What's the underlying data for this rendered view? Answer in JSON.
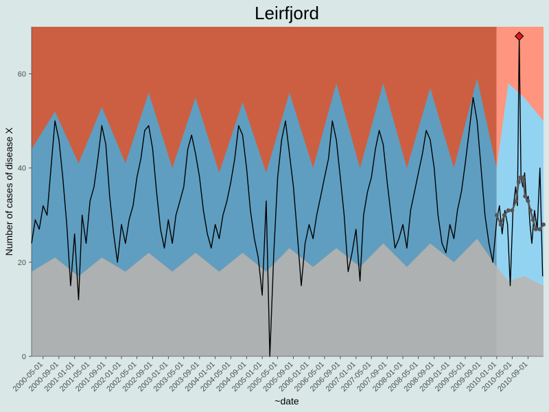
{
  "chart_data": {
    "type": "area",
    "title": "Leirfjord",
    "xlabel": "~date",
    "ylabel": "Number of cases of disease X",
    "ylim": [
      0,
      70
    ],
    "xlim": [
      "2000-02-01",
      "2010-12-31"
    ],
    "y_ticks": [
      0,
      20,
      40,
      60
    ],
    "x_ticks": [
      "2000-05-01",
      "2000-09-01",
      "2001-01-01",
      "2001-05-01",
      "2001-09-01",
      "2002-01-01",
      "2002-05-01",
      "2002-09-01",
      "2003-01-01",
      "2003-05-01",
      "2003-09-01",
      "2004-01-01",
      "2004-05-01",
      "2004-09-01",
      "2005-01-01",
      "2005-05-01",
      "2005-09-01",
      "2006-01-01",
      "2006-05-01",
      "2006-09-01",
      "2007-01-01",
      "2007-05-01",
      "2007-09-01",
      "2008-01-01",
      "2008-05-01",
      "2008-09-01",
      "2009-01-01",
      "2009-05-01",
      "2009-09-01",
      "2010-01-01",
      "2010-05-01",
      "2010-09-01"
    ],
    "baseline_end": "2009-12-31",
    "grid": false,
    "legend": "none",
    "bands": {
      "lower_threshold": [
        {
          "x": "2000-02-01",
          "y": 18
        },
        {
          "x": "2000-08-01",
          "y": 21
        },
        {
          "x": "2001-02-01",
          "y": 17
        },
        {
          "x": "2001-08-01",
          "y": 21
        },
        {
          "x": "2002-02-01",
          "y": 18
        },
        {
          "x": "2002-08-01",
          "y": 22
        },
        {
          "x": "2003-02-01",
          "y": 18
        },
        {
          "x": "2003-08-01",
          "y": 22
        },
        {
          "x": "2004-02-01",
          "y": 18
        },
        {
          "x": "2004-08-01",
          "y": 22
        },
        {
          "x": "2005-02-01",
          "y": 18
        },
        {
          "x": "2005-08-01",
          "y": 23
        },
        {
          "x": "2006-02-01",
          "y": 19
        },
        {
          "x": "2006-08-01",
          "y": 23
        },
        {
          "x": "2007-02-01",
          "y": 19
        },
        {
          "x": "2007-08-01",
          "y": 24
        },
        {
          "x": "2008-02-01",
          "y": 19
        },
        {
          "x": "2008-08-01",
          "y": 24
        },
        {
          "x": "2009-02-01",
          "y": 20
        },
        {
          "x": "2009-08-01",
          "y": 25
        },
        {
          "x": "2009-12-31",
          "y": 19
        },
        {
          "x": "2010-04-01",
          "y": 16
        },
        {
          "x": "2010-08-01",
          "y": 17
        },
        {
          "x": "2010-12-31",
          "y": 15
        }
      ],
      "upper_threshold": [
        {
          "x": "2000-02-01",
          "y": 44
        },
        {
          "x": "2000-08-01",
          "y": 52
        },
        {
          "x": "2001-02-01",
          "y": 41
        },
        {
          "x": "2001-08-01",
          "y": 53
        },
        {
          "x": "2002-02-01",
          "y": 41
        },
        {
          "x": "2002-08-01",
          "y": 56
        },
        {
          "x": "2003-02-01",
          "y": 40
        },
        {
          "x": "2003-08-01",
          "y": 55
        },
        {
          "x": "2004-02-01",
          "y": 39
        },
        {
          "x": "2004-08-01",
          "y": 54
        },
        {
          "x": "2005-02-01",
          "y": 39
        },
        {
          "x": "2005-08-01",
          "y": 56
        },
        {
          "x": "2006-02-01",
          "y": 40
        },
        {
          "x": "2006-08-01",
          "y": 58
        },
        {
          "x": "2007-02-01",
          "y": 40
        },
        {
          "x": "2007-08-01",
          "y": 58
        },
        {
          "x": "2008-02-01",
          "y": 40
        },
        {
          "x": "2008-08-01",
          "y": 57
        },
        {
          "x": "2009-02-01",
          "y": 40
        },
        {
          "x": "2009-08-01",
          "y": 59
        },
        {
          "x": "2009-12-31",
          "y": 40
        },
        {
          "x": "2010-04-01",
          "y": 58
        },
        {
          "x": "2010-08-01",
          "y": 55
        },
        {
          "x": "2010-12-31",
          "y": 50
        }
      ]
    },
    "series": [
      {
        "values": [
          {
            "x": "2000-02-01",
            "y": 24
          },
          {
            "x": "2000-03-01",
            "y": 29
          },
          {
            "x": "2000-04-01",
            "y": 27
          },
          {
            "x": "2000-05-01",
            "y": 32
          },
          {
            "x": "2000-06-01",
            "y": 30
          },
          {
            "x": "2000-07-01",
            "y": 40
          },
          {
            "x": "2000-08-01",
            "y": 50
          },
          {
            "x": "2000-09-01",
            "y": 46
          },
          {
            "x": "2000-10-01",
            "y": 38
          },
          {
            "x": "2000-11-01",
            "y": 28
          },
          {
            "x": "2000-12-01",
            "y": 15
          },
          {
            "x": "2001-01-01",
            "y": 26
          },
          {
            "x": "2001-02-01",
            "y": 12
          },
          {
            "x": "2001-03-01",
            "y": 30
          },
          {
            "x": "2001-04-01",
            "y": 24
          },
          {
            "x": "2001-05-01",
            "y": 33
          },
          {
            "x": "2001-06-01",
            "y": 36
          },
          {
            "x": "2001-07-01",
            "y": 42
          },
          {
            "x": "2001-08-01",
            "y": 49
          },
          {
            "x": "2001-09-01",
            "y": 45
          },
          {
            "x": "2001-10-01",
            "y": 34
          },
          {
            "x": "2001-11-01",
            "y": 26
          },
          {
            "x": "2001-12-01",
            "y": 20
          },
          {
            "x": "2002-01-01",
            "y": 28
          },
          {
            "x": "2002-02-01",
            "y": 24
          },
          {
            "x": "2002-03-01",
            "y": 29
          },
          {
            "x": "2002-04-01",
            "y": 32
          },
          {
            "x": "2002-05-01",
            "y": 38
          },
          {
            "x": "2002-06-01",
            "y": 42
          },
          {
            "x": "2002-07-01",
            "y": 48
          },
          {
            "x": "2002-08-01",
            "y": 49
          },
          {
            "x": "2002-09-01",
            "y": 44
          },
          {
            "x": "2002-10-01",
            "y": 35
          },
          {
            "x": "2002-11-01",
            "y": 27
          },
          {
            "x": "2002-12-01",
            "y": 23
          },
          {
            "x": "2003-01-01",
            "y": 29
          },
          {
            "x": "2003-02-01",
            "y": 24
          },
          {
            "x": "2003-03-01",
            "y": 30
          },
          {
            "x": "2003-04-01",
            "y": 33
          },
          {
            "x": "2003-05-01",
            "y": 36
          },
          {
            "x": "2003-06-01",
            "y": 44
          },
          {
            "x": "2003-07-01",
            "y": 47
          },
          {
            "x": "2003-08-01",
            "y": 43
          },
          {
            "x": "2003-09-01",
            "y": 38
          },
          {
            "x": "2003-10-01",
            "y": 31
          },
          {
            "x": "2003-11-01",
            "y": 26
          },
          {
            "x": "2003-12-01",
            "y": 23
          },
          {
            "x": "2004-01-01",
            "y": 28
          },
          {
            "x": "2004-02-01",
            "y": 25
          },
          {
            "x": "2004-03-01",
            "y": 30
          },
          {
            "x": "2004-04-01",
            "y": 33
          },
          {
            "x": "2004-05-01",
            "y": 37
          },
          {
            "x": "2004-06-01",
            "y": 42
          },
          {
            "x": "2004-07-01",
            "y": 49
          },
          {
            "x": "2004-08-01",
            "y": 47
          },
          {
            "x": "2004-09-01",
            "y": 40
          },
          {
            "x": "2004-10-01",
            "y": 31
          },
          {
            "x": "2004-11-01",
            "y": 25
          },
          {
            "x": "2004-12-01",
            "y": 21
          },
          {
            "x": "2005-01-01",
            "y": 13
          },
          {
            "x": "2005-02-01",
            "y": 33
          },
          {
            "x": "2005-03-01",
            "y": 0
          },
          {
            "x": "2005-04-01",
            "y": 22
          },
          {
            "x": "2005-05-01",
            "y": 38
          },
          {
            "x": "2005-06-01",
            "y": 46
          },
          {
            "x": "2005-07-01",
            "y": 50
          },
          {
            "x": "2005-08-01",
            "y": 43
          },
          {
            "x": "2005-09-01",
            "y": 36
          },
          {
            "x": "2005-10-01",
            "y": 26
          },
          {
            "x": "2005-11-01",
            "y": 15
          },
          {
            "x": "2005-12-01",
            "y": 24
          },
          {
            "x": "2006-01-01",
            "y": 28
          },
          {
            "x": "2006-02-01",
            "y": 25
          },
          {
            "x": "2006-03-01",
            "y": 30
          },
          {
            "x": "2006-04-01",
            "y": 34
          },
          {
            "x": "2006-05-01",
            "y": 38
          },
          {
            "x": "2006-06-01",
            "y": 42
          },
          {
            "x": "2006-07-01",
            "y": 50
          },
          {
            "x": "2006-08-01",
            "y": 46
          },
          {
            "x": "2006-09-01",
            "y": 38
          },
          {
            "x": "2006-10-01",
            "y": 30
          },
          {
            "x": "2006-11-01",
            "y": 18
          },
          {
            "x": "2006-12-01",
            "y": 22
          },
          {
            "x": "2007-01-01",
            "y": 27
          },
          {
            "x": "2007-02-01",
            "y": 16
          },
          {
            "x": "2007-03-01",
            "y": 30
          },
          {
            "x": "2007-04-01",
            "y": 35
          },
          {
            "x": "2007-05-01",
            "y": 38
          },
          {
            "x": "2007-06-01",
            "y": 44
          },
          {
            "x": "2007-07-01",
            "y": 48
          },
          {
            "x": "2007-08-01",
            "y": 45
          },
          {
            "x": "2007-09-01",
            "y": 37
          },
          {
            "x": "2007-10-01",
            "y": 30
          },
          {
            "x": "2007-11-01",
            "y": 23
          },
          {
            "x": "2007-12-01",
            "y": 25
          },
          {
            "x": "2008-01-01",
            "y": 28
          },
          {
            "x": "2008-02-01",
            "y": 23
          },
          {
            "x": "2008-03-01",
            "y": 31
          },
          {
            "x": "2008-04-01",
            "y": 35
          },
          {
            "x": "2008-05-01",
            "y": 39
          },
          {
            "x": "2008-06-01",
            "y": 43
          },
          {
            "x": "2008-07-01",
            "y": 48
          },
          {
            "x": "2008-08-01",
            "y": 46
          },
          {
            "x": "2008-09-01",
            "y": 40
          },
          {
            "x": "2008-10-01",
            "y": 30
          },
          {
            "x": "2008-11-01",
            "y": 24
          },
          {
            "x": "2008-12-01",
            "y": 22
          },
          {
            "x": "2009-01-01",
            "y": 28
          },
          {
            "x": "2009-02-01",
            "y": 25
          },
          {
            "x": "2009-03-01",
            "y": 31
          },
          {
            "x": "2009-04-01",
            "y": 35
          },
          {
            "x": "2009-05-01",
            "y": 41
          },
          {
            "x": "2009-06-01",
            "y": 48
          },
          {
            "x": "2009-07-01",
            "y": 55
          },
          {
            "x": "2009-08-01",
            "y": 50
          },
          {
            "x": "2009-09-01",
            "y": 40
          },
          {
            "x": "2009-10-01",
            "y": 30
          },
          {
            "x": "2009-11-01",
            "y": 24
          },
          {
            "x": "2009-12-01",
            "y": 20
          }
        ]
      },
      {
        "values": [
          {
            "x": "2010-01-01",
            "y": 29
          },
          {
            "x": "2010-01-22",
            "y": 32
          },
          {
            "x": "2010-02-12",
            "y": 26
          },
          {
            "x": "2010-03-05",
            "y": 31
          },
          {
            "x": "2010-03-26",
            "y": 28
          },
          {
            "x": "2010-04-16",
            "y": 15
          },
          {
            "x": "2010-05-07",
            "y": 31
          },
          {
            "x": "2010-05-28",
            "y": 36
          },
          {
            "x": "2010-06-11",
            "y": 32
          },
          {
            "x": "2010-06-25",
            "y": 68
          },
          {
            "x": "2010-07-09",
            "y": 38
          },
          {
            "x": "2010-07-23",
            "y": 36
          },
          {
            "x": "2010-08-06",
            "y": 39
          },
          {
            "x": "2010-08-20",
            "y": 33
          },
          {
            "x": "2010-09-03",
            "y": 34
          },
          {
            "x": "2010-09-17",
            "y": 28
          },
          {
            "x": "2010-10-01",
            "y": 24
          },
          {
            "x": "2010-10-22",
            "y": 31
          },
          {
            "x": "2010-11-12",
            "y": 27
          },
          {
            "x": "2010-12-03",
            "y": 40
          },
          {
            "x": "2010-12-24",
            "y": 17
          }
        ]
      },
      {
        "values": [
          {
            "x": "2010-01-01",
            "y": 30
          },
          {
            "x": "2010-02-01",
            "y": 28
          },
          {
            "x": "2010-03-01",
            "y": 30
          },
          {
            "x": "2010-04-01",
            "y": 31
          },
          {
            "x": "2010-05-01",
            "y": 31
          },
          {
            "x": "2010-06-01",
            "y": 33
          },
          {
            "x": "2010-06-20",
            "y": 37
          },
          {
            "x": "2010-07-05",
            "y": 38
          },
          {
            "x": "2010-07-25",
            "y": 38
          },
          {
            "x": "2010-08-10",
            "y": 34
          },
          {
            "x": "2010-09-01",
            "y": 33
          },
          {
            "x": "2010-09-20",
            "y": 31
          },
          {
            "x": "2010-10-10",
            "y": 29
          },
          {
            "x": "2010-11-01",
            "y": 27
          },
          {
            "x": "2010-12-01",
            "y": 27
          },
          {
            "x": "2010-12-31",
            "y": 28
          }
        ]
      }
    ],
    "alarm": {
      "x": "2010-06-25",
      "y": 68
    },
    "colors": {
      "background": "#d9e7e7",
      "baseline_above": "#cc5f42",
      "baseline_band": "#5f9ec0",
      "baseline_below": "#adb1b1",
      "forecast_above": "#ff957e",
      "forecast_band": "#93d3f2",
      "forecast_below": "#b5b9b9",
      "observed_line": "#000000",
      "forecast_points": "#555555",
      "alarm_marker": "#dd1c1c"
    }
  }
}
